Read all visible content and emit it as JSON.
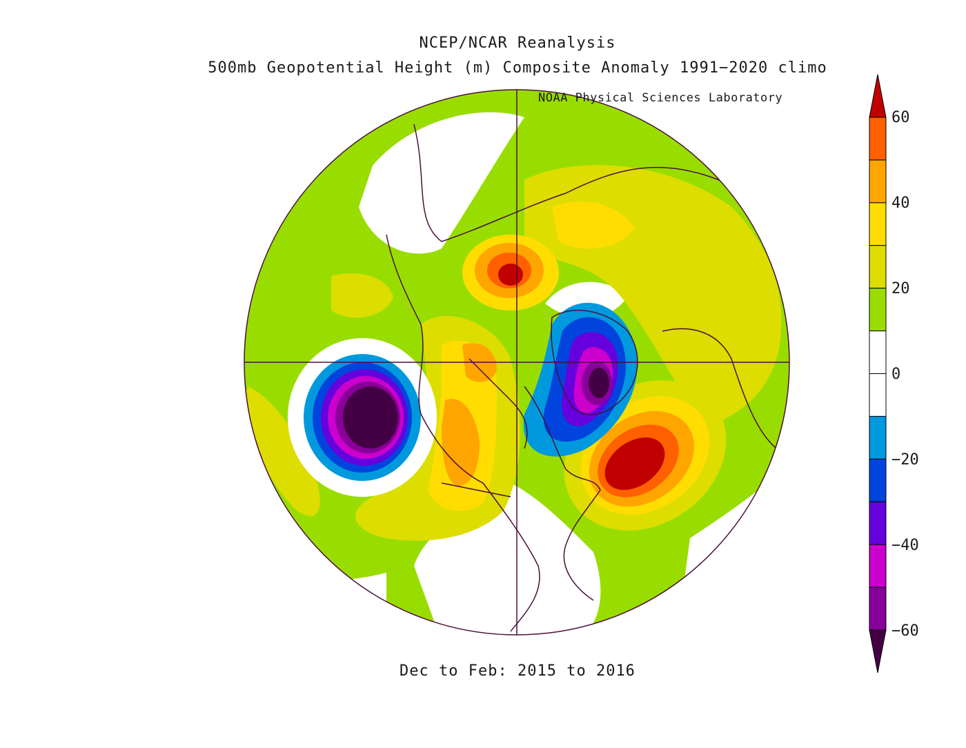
{
  "titles": {
    "line1": "NCEP/NCAR Reanalysis",
    "line2": "500mb Geopotential Height (m) Composite Anomaly 1991−2020 climo",
    "credit": "NOAA Physical Sciences Laboratory",
    "period": "Dec to Feb: 2015 to 2016"
  },
  "colorbar": {
    "labels": [
      "60",
      "40",
      "20",
      "0",
      "−20",
      "−40",
      "−60"
    ],
    "levels": [
      60,
      50,
      40,
      30,
      20,
      10,
      0,
      -10,
      -20,
      -30,
      -40,
      -50,
      -60
    ],
    "colors": [
      "#c00000",
      "#ff6000",
      "#ffa500",
      "#ffdd00",
      "#dddd00",
      "#99dd00",
      "#ffffff",
      "#ffffff",
      "#0099dd",
      "#0044dd",
      "#6600dd",
      "#cc00cc",
      "#880099",
      "#440044"
    ]
  },
  "map": {
    "projection": "north polar stereographic",
    "features": [
      {
        "name": "aleutian-low",
        "value": -60
      },
      {
        "name": "greenland-low",
        "value": -60
      },
      {
        "name": "atlantic-high",
        "value": 60
      },
      {
        "name": "siberian-high",
        "value": 60
      }
    ]
  }
}
